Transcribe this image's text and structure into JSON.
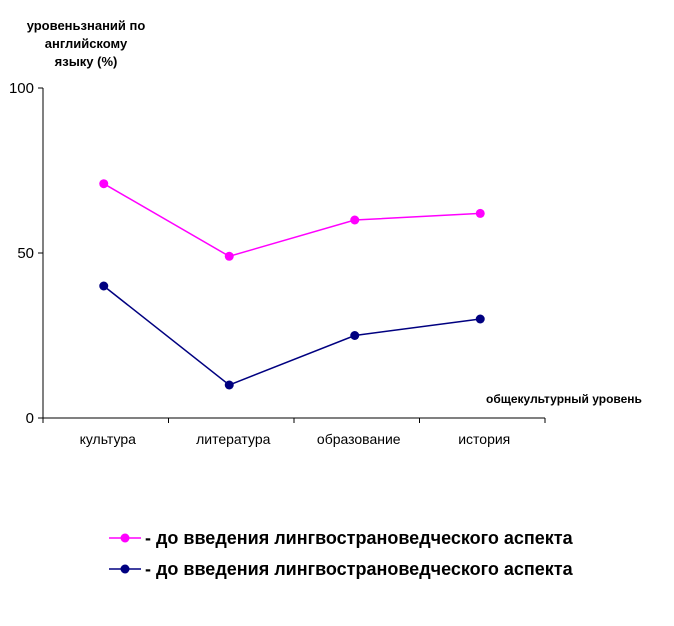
{
  "chart_data": {
    "type": "line",
    "ylabel_lines": [
      "уровеньзнаний по",
      "английскому",
      "языку (%)"
    ],
    "xlabel": "общекультурный уровень",
    "categories": [
      "культура",
      "литература",
      "образование",
      "история"
    ],
    "ylim": [
      0,
      100
    ],
    "yticks": [
      "0",
      "50",
      "100"
    ],
    "grid": false,
    "legend_position": "bottom",
    "series": [
      {
        "name": "- до введения лингвострановедческого аспекта",
        "color": "#ff00ff",
        "values": [
          71,
          49,
          60,
          62
        ]
      },
      {
        "name": "- до введения лингвострановедческого аспекта",
        "color": "#000080",
        "values": [
          40,
          10,
          25,
          30
        ]
      }
    ]
  }
}
